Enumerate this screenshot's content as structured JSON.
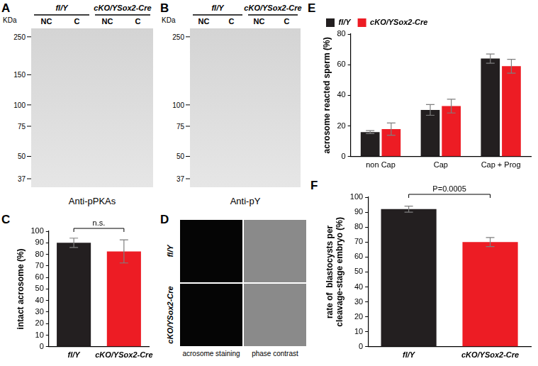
{
  "blots": [
    {
      "panel": "A",
      "unit": "KDa",
      "groups": [
        "fl/Y",
        "cKO/YSox2-Cre"
      ],
      "lanes": [
        "NC",
        "C",
        "NC",
        "C"
      ],
      "markers": [
        250,
        150,
        100,
        75,
        50,
        37
      ],
      "antibody": "Anti-pPKAs"
    },
    {
      "panel": "B",
      "unit": "KDa",
      "groups": [
        "fl/Y",
        "cKO/YSox2-Cre"
      ],
      "lanes": [
        "NC",
        "C",
        "NC",
        "C"
      ],
      "markers": [
        250,
        100,
        75,
        50,
        37
      ],
      "antibody": "Anti-pY"
    }
  ],
  "micrograph": {
    "panel": "D",
    "rows": [
      "fl/Y",
      "cKO/YSox2-Cre"
    ],
    "columns": [
      "acrosome staining",
      "phase contrast"
    ]
  },
  "chart_data": [
    {
      "panel": "C",
      "type": "bar",
      "categories": [
        "fl/Y",
        "cKO/YSox2-Cre"
      ],
      "values": [
        90,
        82.5
      ],
      "errors": [
        4,
        10
      ],
      "colors": [
        "#231f20",
        "#ed1c24"
      ],
      "ylabel": "intact acrosome (%)",
      "ylim": [
        0,
        100
      ],
      "yticks": [
        0,
        10,
        20,
        30,
        40,
        50,
        60,
        70,
        80,
        90,
        100
      ],
      "grid": false,
      "annotation": "n.s."
    },
    {
      "panel": "E",
      "type": "bar",
      "categories": [
        "non Cap",
        "Cap",
        "Cap + Prog"
      ],
      "series": [
        {
          "name": "fl/Y",
          "color": "#231f20",
          "values": [
            16,
            30.5,
            64
          ],
          "errors": [
            1,
            3.5,
            3
          ]
        },
        {
          "name": "cKO/YSox2-Cre",
          "color": "#ed1c24",
          "values": [
            18,
            33,
            59
          ],
          "errors": [
            4,
            4.5,
            4.5
          ]
        }
      ],
      "ylabel": "acrosome reacted sperm (%)",
      "ylim": [
        0,
        80
      ],
      "yticks": [
        0,
        20,
        40,
        60,
        80
      ],
      "grid": false,
      "legend": "upper left"
    },
    {
      "panel": "F",
      "type": "bar",
      "categories": [
        "fl/Y",
        "cKO/YSox2-Cre"
      ],
      "values": [
        92,
        70
      ],
      "errors": [
        2,
        3
      ],
      "colors": [
        "#231f20",
        "#ed1c24"
      ],
      "ylabel": [
        "rate of  blastocysts per",
        "cleavage-stage embryo (%)"
      ],
      "ylim": [
        0,
        100
      ],
      "yticks": [
        0,
        10,
        20,
        30,
        40,
        50,
        60,
        70,
        80,
        90,
        100
      ],
      "grid": false,
      "annotation": "P=0.0005"
    }
  ]
}
